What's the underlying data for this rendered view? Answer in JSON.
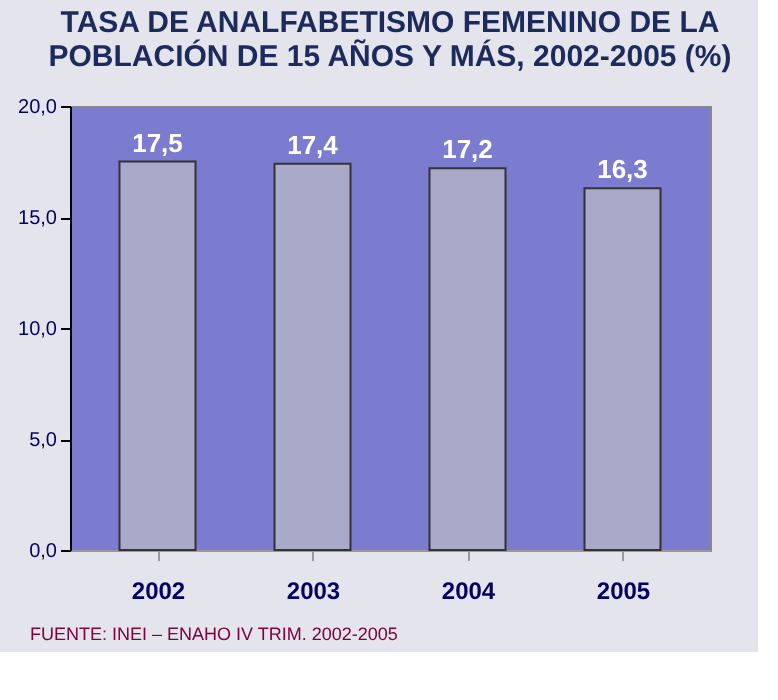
{
  "chart_data": {
    "type": "bar",
    "title": "TASA DE ANALFABETISMO FEMENINO DE LA\nPOBLACIÓN DE 15 AÑOS Y MÁS, 2002-2005 (%)",
    "categories": [
      "2002",
      "2003",
      "2004",
      "2005"
    ],
    "values": [
      17.5,
      17.4,
      17.2,
      16.3
    ],
    "value_labels": [
      "17,5",
      "17,4",
      "17,2",
      "16,3"
    ],
    "color": "#a9a9c9",
    "ylim": [
      0,
      20
    ],
    "yticks": [
      {
        "value": 0,
        "label": "0,0"
      },
      {
        "value": 5,
        "label": "5,0"
      },
      {
        "value": 10,
        "label": "10,0"
      },
      {
        "value": 15,
        "label": "15,0"
      },
      {
        "value": 20,
        "label": "20,0"
      }
    ],
    "grid": false,
    "annotations": [
      "FUENTE: INEI – ENAHO IV TRIM. 2002-2005"
    ]
  }
}
